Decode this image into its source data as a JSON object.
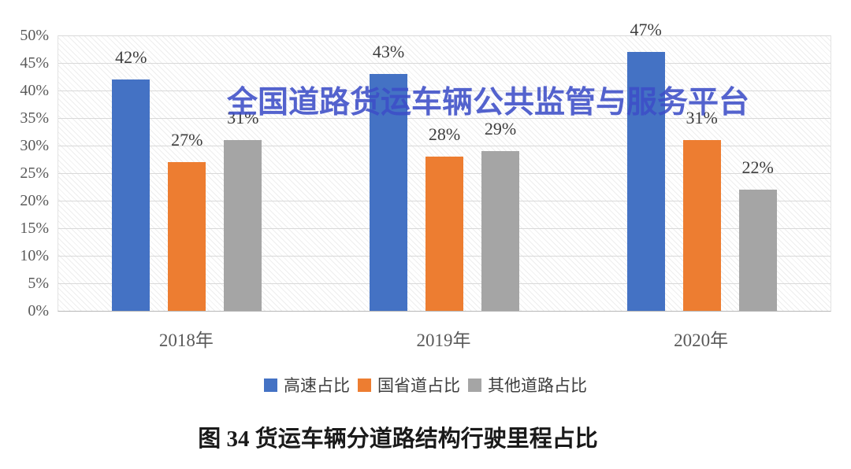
{
  "watermark": {
    "text": "全国道路货运车辆公共监管与服务平台",
    "color": "#3D4EC8"
  },
  "caption": "图 34 货运车辆分道路结构行驶里程占比",
  "chart_data": {
    "type": "bar",
    "title": "",
    "xlabel": "",
    "ylabel": "",
    "categories": [
      "2018年",
      "2019年",
      "2020年"
    ],
    "series": [
      {
        "name": "高速占比",
        "color": "#4472C4",
        "values": [
          42,
          43,
          47
        ]
      },
      {
        "name": "国省道占比",
        "color": "#ED7D31",
        "values": [
          27,
          28,
          31
        ]
      },
      {
        "name": "其他道路占比",
        "color": "#A5A5A5",
        "values": [
          31,
          29,
          22
        ]
      }
    ],
    "data_labels": [
      "42%",
      "27%",
      "31%",
      "43%",
      "28%",
      "29%",
      "47%",
      "31%",
      "22%"
    ],
    "value_suffix": "%",
    "ylim": [
      0,
      50
    ],
    "ytick_step": 5,
    "ytick_labels": [
      "0%",
      "5%",
      "10%",
      "15%",
      "20%",
      "25%",
      "30%",
      "35%",
      "40%",
      "45%",
      "50%"
    ],
    "grid": true,
    "plot_background": "diagonal-hatch",
    "legend_position": "bottom",
    "gridline_color": "#D9D9D9",
    "axis_line_color": "#B7B7B7"
  }
}
